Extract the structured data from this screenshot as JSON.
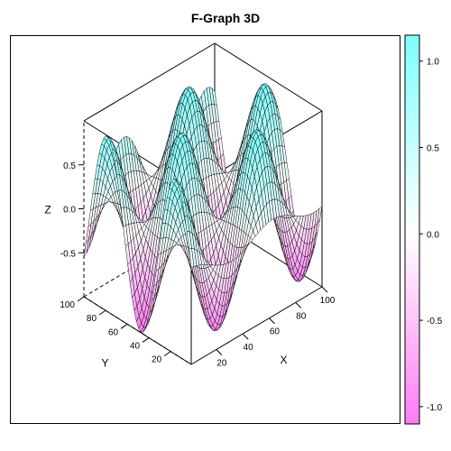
{
  "chart_data": {
    "type": "surface3d",
    "title": "F-Graph 3D",
    "xlabel": "X",
    "ylabel": "Y",
    "zlabel": "Z",
    "x_ticks": [
      "20",
      "40",
      "60",
      "80",
      "100"
    ],
    "y_ticks": [
      "20",
      "40",
      "60",
      "80",
      "100"
    ],
    "z_ticks": [
      "-0.5",
      "0.0",
      "0.5"
    ],
    "xlim": [
      1,
      100
    ],
    "ylim": [
      1,
      100
    ],
    "zlim": [
      -1,
      1
    ],
    "grid_points": 50,
    "surface_function": "z = cos(x/10) * sin(y/10)",
    "colorbar": {
      "ticks": [
        "1.0",
        "0.5",
        "0.0",
        "-0.5",
        "-1.0"
      ],
      "tick_values": [
        1.0,
        0.5,
        0.0,
        -0.5,
        -1.0
      ],
      "range": [
        -1.1,
        1.15
      ],
      "color_low": "#ff7cf4",
      "color_mid": "#ffffff",
      "color_high": "#7cffff"
    },
    "mesh_color": "#000000",
    "bounding_box": true
  }
}
